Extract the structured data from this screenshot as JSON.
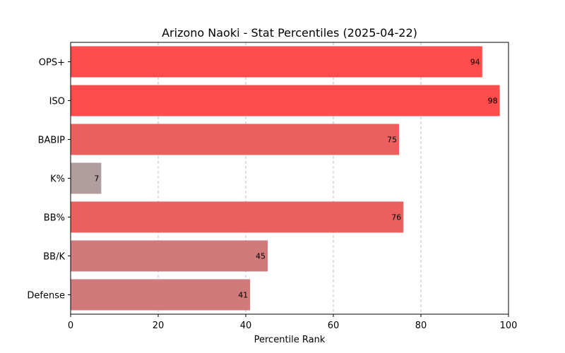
{
  "chart_data": {
    "type": "bar",
    "orientation": "horizontal",
    "title": "Arizono Naoki - Stat Percentiles (2025-04-22)",
    "xlabel": "Percentile Rank",
    "ylabel": "",
    "xlim": [
      0,
      100
    ],
    "xticks": [
      0,
      20,
      40,
      60,
      80,
      100
    ],
    "grid": "x-dashed",
    "categories": [
      "OPS+",
      "ISO",
      "BABIP",
      "K%",
      "BB%",
      "BB/K",
      "Defense"
    ],
    "values": [
      94,
      98,
      75,
      7,
      76,
      45,
      41
    ],
    "colors": [
      "#ff4d4d",
      "#ff4d4d",
      "#eb5f5f",
      "#b09d9d",
      "#eb5f5f",
      "#d07a7a",
      "#d07a7a"
    ]
  }
}
